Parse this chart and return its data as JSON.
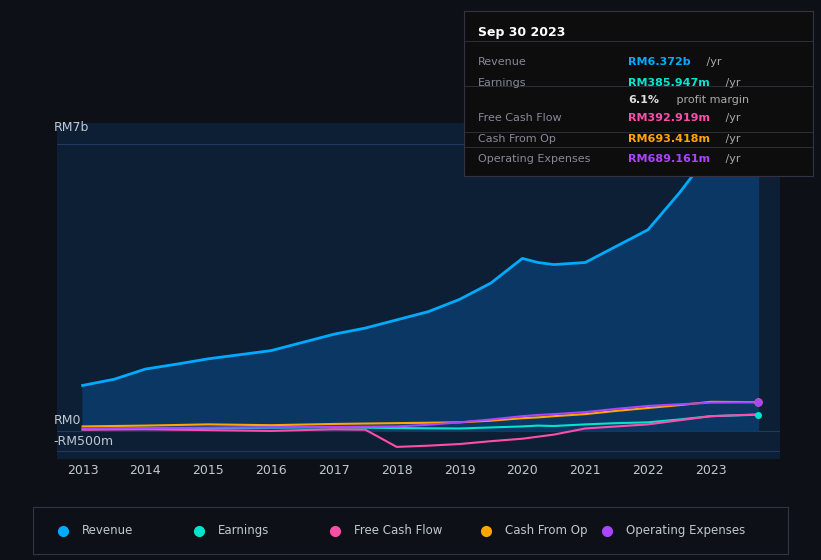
{
  "bg_color": "#0d1117",
  "plot_bg_color": "#0d1f35",
  "grid_color": "#1e3a5f",
  "text_color": "#c0c8d0",
  "title_color": "#ffffff",
  "years": [
    2013,
    2013.5,
    2014,
    2014.5,
    2015,
    2015.5,
    2016,
    2016.5,
    2017,
    2017.5,
    2018,
    2018.5,
    2019,
    2019.5,
    2020,
    2020.25,
    2020.5,
    2021,
    2021.5,
    2022,
    2022.5,
    2023,
    2023.75
  ],
  "revenue": [
    1100,
    1250,
    1500,
    1620,
    1750,
    1850,
    1950,
    2150,
    2350,
    2500,
    2700,
    2900,
    3200,
    3600,
    4200,
    4100,
    4050,
    4100,
    4500,
    4900,
    5800,
    6800,
    6372
  ],
  "earnings": [
    30,
    40,
    50,
    55,
    60,
    65,
    70,
    75,
    80,
    70,
    60,
    55,
    50,
    75,
    100,
    120,
    110,
    150,
    180,
    200,
    270,
    350,
    386
  ],
  "free_cash_flow": [
    20,
    25,
    30,
    20,
    10,
    0,
    -10,
    10,
    30,
    20,
    -400,
    -370,
    -330,
    -260,
    -200,
    -150,
    -100,
    50,
    100,
    150,
    250,
    350,
    393
  ],
  "cash_from_op": [
    100,
    110,
    120,
    135,
    150,
    140,
    130,
    145,
    160,
    170,
    180,
    190,
    200,
    240,
    300,
    320,
    350,
    400,
    480,
    550,
    620,
    700,
    693
  ],
  "operating_expenses": [
    50,
    55,
    60,
    65,
    70,
    75,
    80,
    85,
    90,
    95,
    100,
    140,
    200,
    270,
    350,
    380,
    400,
    450,
    530,
    600,
    640,
    680,
    689
  ],
  "revenue_color": "#00aaff",
  "earnings_color": "#00e5cc",
  "free_cash_flow_color": "#ff4daa",
  "cash_from_op_color": "#ffa500",
  "operating_expenses_color": "#aa44ff",
  "revenue_fill_color": "#0a3a6a",
  "ylim_top": 7500,
  "ylim_bottom": -700,
  "x_ticks": [
    2013,
    2014,
    2015,
    2016,
    2017,
    2018,
    2019,
    2020,
    2021,
    2022,
    2023
  ],
  "info_box": {
    "title": "Sep 30 2023",
    "rows": [
      {
        "label": "Revenue",
        "value": "RM6.372b",
        "unit": " /yr",
        "value_color": "#00aaff"
      },
      {
        "label": "Earnings",
        "value": "RM385.947m",
        "unit": " /yr",
        "value_color": "#00e5cc"
      },
      {
        "label": "",
        "value": "6.1%",
        "unit": " profit margin",
        "value_color": "#ffffff"
      },
      {
        "label": "Free Cash Flow",
        "value": "RM392.919m",
        "unit": " /yr",
        "value_color": "#ff4daa"
      },
      {
        "label": "Cash From Op",
        "value": "RM693.418m",
        "unit": " /yr",
        "value_color": "#ffa500"
      },
      {
        "label": "Operating Expenses",
        "value": "RM689.161m",
        "unit": " /yr",
        "value_color": "#aa44ff"
      }
    ]
  },
  "legend_items": [
    {
      "label": "Revenue",
      "color": "#00aaff"
    },
    {
      "label": "Earnings",
      "color": "#00e5cc"
    },
    {
      "label": "Free Cash Flow",
      "color": "#ff4daa"
    },
    {
      "label": "Cash From Op",
      "color": "#ffa500"
    },
    {
      "label": "Operating Expenses",
      "color": "#aa44ff"
    }
  ]
}
